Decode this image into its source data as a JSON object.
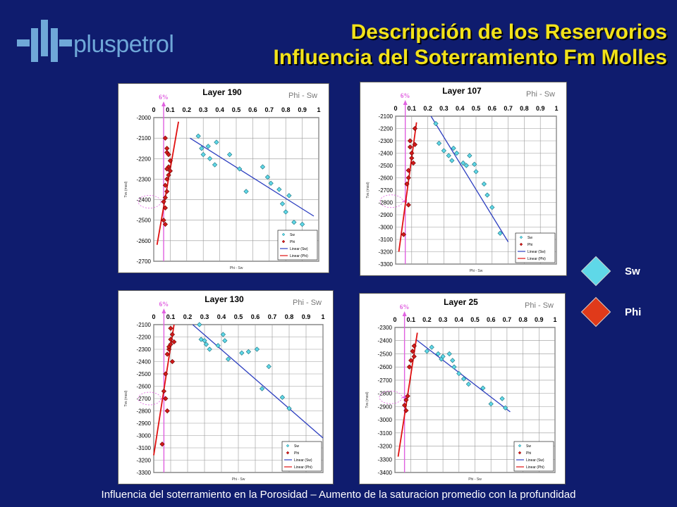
{
  "logo_text": "pluspetrol",
  "title_line1": "Descripción de los Reservorios",
  "title_line2": "Influencia del Soterramiento Fm Molles",
  "footer": "Influencia del soterramiento en la Porosidad – Aumento de la saturacion promedio con la profundidad",
  "key": [
    {
      "label": "Sw",
      "color": "#5fd8e8"
    },
    {
      "label": "Phi",
      "color": "#e03a1a"
    }
  ],
  "colors": {
    "sw_marker": "#5fd8e8",
    "phi_marker": "#d21a1a",
    "sw_trend": "#2d3fc0",
    "phi_trend": "#e01010",
    "arrow": "#e060e0"
  },
  "chart_data": [
    {
      "type": "scatter",
      "title": "Layer 190",
      "overlay_label": "Phi - Sw",
      "marker_label": "6%",
      "xlabel": "Phi - Sw",
      "ylabel": "Tvs (mssl)",
      "x_ticks": [
        "0",
        "0.1",
        "0.2",
        "0.3",
        "0.4",
        "0.5",
        "0.6",
        "0.7",
        "0.8",
        "0.9",
        "1"
      ],
      "y_ticks": [
        "-2000",
        "-2100",
        "-2200",
        "-2300",
        "-2400",
        "-2500",
        "-2600",
        "-2700"
      ],
      "xlim": [
        0,
        1
      ],
      "ylim": [
        -2700,
        -2000
      ],
      "grid": true,
      "legend": [
        "Sw",
        "Phi",
        "Linear (Sw)",
        "Linear (Phi)"
      ],
      "legend_position": "bottom-right",
      "sw": [
        [
          0.27,
          -2090
        ],
        [
          0.29,
          -2150
        ],
        [
          0.3,
          -2180
        ],
        [
          0.33,
          -2140
        ],
        [
          0.34,
          -2200
        ],
        [
          0.37,
          -2230
        ],
        [
          0.38,
          -2120
        ],
        [
          0.46,
          -2180
        ],
        [
          0.52,
          -2250
        ],
        [
          0.56,
          -2360
        ],
        [
          0.66,
          -2240
        ],
        [
          0.69,
          -2290
        ],
        [
          0.71,
          -2320
        ],
        [
          0.76,
          -2350
        ],
        [
          0.78,
          -2420
        ],
        [
          0.8,
          -2460
        ],
        [
          0.82,
          -2380
        ],
        [
          0.85,
          -2510
        ],
        [
          0.9,
          -2520
        ]
      ],
      "phi": [
        [
          0.07,
          -2100
        ],
        [
          0.08,
          -2150
        ],
        [
          0.08,
          -2170
        ],
        [
          0.09,
          -2180
        ],
        [
          0.1,
          -2210
        ],
        [
          0.09,
          -2240
        ],
        [
          0.08,
          -2250
        ],
        [
          0.1,
          -2260
        ],
        [
          0.09,
          -2280
        ],
        [
          0.08,
          -2300
        ],
        [
          0.07,
          -2330
        ],
        [
          0.08,
          -2360
        ],
        [
          0.07,
          -2390
        ],
        [
          0.06,
          -2410
        ],
        [
          0.07,
          -2440
        ],
        [
          0.06,
          -2500
        ],
        [
          0.07,
          -2520
        ]
      ],
      "sw_trend": [
        [
          0.22,
          -2100
        ],
        [
          0.97,
          -2480
        ]
      ],
      "phi_trend": [
        [
          0.02,
          -2620
        ],
        [
          0.15,
          -2020
        ]
      ],
      "marker_y": -2410
    },
    {
      "type": "scatter",
      "title": "Layer 107",
      "overlay_label": "Phi - Sw",
      "marker_label": "6%",
      "xlabel": "Phi - Sw",
      "ylabel": "Tvs (mssl)",
      "x_ticks": [
        "0",
        "0.1",
        "0.2",
        "0.3",
        "0.4",
        "0.5",
        "0.6",
        "0.7",
        "0.8",
        "0.9",
        "1"
      ],
      "y_ticks": [
        "-2100",
        "-2200",
        "-2300",
        "-2400",
        "-2500",
        "-2600",
        "-2700",
        "-2800",
        "-2900",
        "-3000",
        "-3100",
        "-3200",
        "-3300"
      ],
      "xlim": [
        0,
        1
      ],
      "ylim": [
        -3300,
        -2100
      ],
      "grid": true,
      "legend": [
        "Sw",
        "Phi",
        "Linear (Sw)",
        "Linear (Phi)"
      ],
      "legend_position": "bottom-right",
      "sw": [
        [
          0.25,
          -2160
        ],
        [
          0.27,
          -2320
        ],
        [
          0.3,
          -2380
        ],
        [
          0.33,
          -2420
        ],
        [
          0.35,
          -2460
        ],
        [
          0.36,
          -2360
        ],
        [
          0.38,
          -2400
        ],
        [
          0.42,
          -2480
        ],
        [
          0.44,
          -2500
        ],
        [
          0.46,
          -2420
        ],
        [
          0.49,
          -2490
        ],
        [
          0.5,
          -2550
        ],
        [
          0.55,
          -2650
        ],
        [
          0.57,
          -2740
        ],
        [
          0.6,
          -2840
        ],
        [
          0.65,
          -3050
        ]
      ],
      "phi": [
        [
          0.05,
          -3060
        ],
        [
          0.07,
          -2650
        ],
        [
          0.08,
          -2820
        ],
        [
          0.09,
          -2300
        ],
        [
          0.09,
          -2350
        ],
        [
          0.1,
          -2400
        ],
        [
          0.1,
          -2440
        ],
        [
          0.11,
          -2480
        ],
        [
          0.12,
          -2330
        ],
        [
          0.12,
          -2200
        ],
        [
          0.08,
          -2540
        ],
        [
          0.08,
          -2600
        ]
      ],
      "sw_trend": [
        [
          0.22,
          -2100
        ],
        [
          0.7,
          -3120
        ]
      ],
      "phi_trend": [
        [
          0.02,
          -3200
        ],
        [
          0.13,
          -2150
        ]
      ],
      "marker_y": -2790
    },
    {
      "type": "scatter",
      "title": "Layer 130",
      "overlay_label": "Phi - Sw",
      "marker_label": "6%",
      "xlabel": "Phi - Sw",
      "ylabel": "Tvs (mssl)",
      "x_ticks": [
        "0",
        "0.1",
        "0.2",
        "0.3",
        "0.4",
        "0.5",
        "0.6",
        "0.7",
        "0.8",
        "0.9",
        "1"
      ],
      "y_ticks": [
        "-2100",
        "-2200",
        "-2300",
        "-2400",
        "-2500",
        "-2600",
        "-2700",
        "-2800",
        "-2900",
        "-3000",
        "-3100",
        "-3200",
        "-3300"
      ],
      "xlim": [
        0,
        1
      ],
      "ylim": [
        -3300,
        -2100
      ],
      "grid": true,
      "legend": [
        "Sw",
        "Phi",
        "Linear (Sw)",
        "Linear (Phi)"
      ],
      "legend_position": "bottom-right",
      "sw": [
        [
          0.27,
          -2100
        ],
        [
          0.28,
          -2220
        ],
        [
          0.3,
          -2230
        ],
        [
          0.31,
          -2260
        ],
        [
          0.33,
          -2300
        ],
        [
          0.38,
          -2270
        ],
        [
          0.41,
          -2180
        ],
        [
          0.42,
          -2230
        ],
        [
          0.44,
          -2380
        ],
        [
          0.52,
          -2330
        ],
        [
          0.56,
          -2320
        ],
        [
          0.61,
          -2300
        ],
        [
          0.64,
          -2620
        ],
        [
          0.68,
          -2440
        ],
        [
          0.76,
          -2690
        ],
        [
          0.8,
          -2780
        ]
      ],
      "phi": [
        [
          0.05,
          -3070
        ],
        [
          0.06,
          -2640
        ],
        [
          0.07,
          -2700
        ],
        [
          0.07,
          -2500
        ],
        [
          0.08,
          -2800
        ],
        [
          0.08,
          -2340
        ],
        [
          0.09,
          -2300
        ],
        [
          0.09,
          -2280
        ],
        [
          0.1,
          -2260
        ],
        [
          0.1,
          -2220
        ],
        [
          0.11,
          -2180
        ],
        [
          0.11,
          -2400
        ],
        [
          0.12,
          -2240
        ],
        [
          0.1,
          -2130
        ]
      ],
      "sw_trend": [
        [
          0.23,
          -2100
        ],
        [
          1.0,
          -3020
        ]
      ],
      "phi_trend": [
        [
          0.0,
          -3160
        ],
        [
          0.12,
          -2100
        ]
      ],
      "marker_y": -2700
    },
    {
      "type": "scatter",
      "title": "Layer 25",
      "overlay_label": "Phi - Sw",
      "marker_label": "6%",
      "xlabel": "Phi - Sw",
      "ylabel": "Tvs (mssl)",
      "x_ticks": [
        "0",
        "0.1",
        "0.2",
        "0.3",
        "0.4",
        "0.5",
        "0.6",
        "0.7",
        "0.8",
        "0.9",
        "1"
      ],
      "y_ticks": [
        "-2300",
        "-2400",
        "-2500",
        "-2600",
        "-2700",
        "-2800",
        "-2900",
        "-3000",
        "-3100",
        "-3200",
        "-3300",
        "-3400"
      ],
      "xlim": [
        0,
        1
      ],
      "ylim": [
        -3400,
        -2300
      ],
      "grid": true,
      "legend": [
        "Sw",
        "Phi",
        "Linear (Sw)",
        "Linear (Phi)"
      ],
      "legend_position": "bottom-right",
      "sw": [
        [
          0.2,
          -2480
        ],
        [
          0.23,
          -2450
        ],
        [
          0.27,
          -2500
        ],
        [
          0.29,
          -2540
        ],
        [
          0.3,
          -2520
        ],
        [
          0.34,
          -2500
        ],
        [
          0.36,
          -2550
        ],
        [
          0.37,
          -2600
        ],
        [
          0.4,
          -2650
        ],
        [
          0.43,
          -2690
        ],
        [
          0.46,
          -2730
        ],
        [
          0.55,
          -2760
        ],
        [
          0.6,
          -2880
        ],
        [
          0.67,
          -2840
        ],
        [
          0.69,
          -2910
        ]
      ],
      "phi": [
        [
          0.06,
          -2890
        ],
        [
          0.07,
          -2930
        ],
        [
          0.07,
          -2850
        ],
        [
          0.08,
          -2820
        ],
        [
          0.09,
          -2600
        ],
        [
          0.1,
          -2550
        ],
        [
          0.11,
          -2480
        ],
        [
          0.12,
          -2440
        ],
        [
          0.12,
          -2520
        ]
      ],
      "sw_trend": [
        [
          0.13,
          -2390
        ],
        [
          0.72,
          -2940
        ]
      ],
      "phi_trend": [
        [
          0.02,
          -3280
        ],
        [
          0.14,
          -2340
        ]
      ],
      "marker_y": -2830
    }
  ]
}
